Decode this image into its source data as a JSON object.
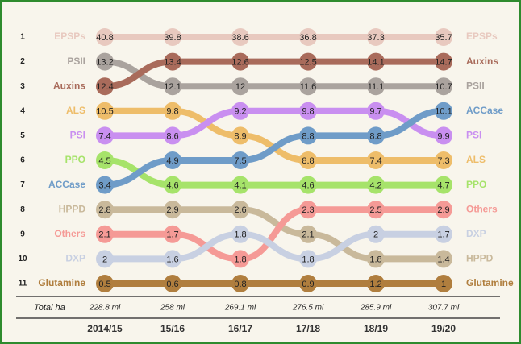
{
  "chart_data": {
    "type": "bump",
    "categories": [
      "2014/15",
      "15/16",
      "16/17",
      "17/18",
      "18/19",
      "19/20"
    ],
    "yticks": [
      1,
      2,
      3,
      4,
      5,
      6,
      7,
      8,
      9,
      10,
      11
    ],
    "total_label": "Total ha",
    "totals": [
      "228.8 mi",
      "258 mi",
      "269.1 mi",
      "276.5 mi",
      "285.9 mi",
      "307.7 mi"
    ],
    "series": [
      {
        "name": "EPSPs",
        "color": "#e8c9bf",
        "values": [
          40.8,
          39.8,
          38.6,
          36.8,
          37.3,
          35.7
        ],
        "ranks": [
          1,
          1,
          1,
          1,
          1,
          1
        ]
      },
      {
        "name": "PSII",
        "color": "#aaa39e",
        "values": [
          13.2,
          12.1,
          12,
          11.6,
          11.1,
          10.7
        ],
        "ranks": [
          2,
          3,
          3,
          3,
          3,
          3
        ]
      },
      {
        "name": "Auxins",
        "color": "#a96b5b",
        "values": [
          12.4,
          13.4,
          12.6,
          12.5,
          14.1,
          14.7
        ],
        "ranks": [
          3,
          2,
          2,
          2,
          2,
          2
        ]
      },
      {
        "name": "ALS",
        "color": "#eebd6a",
        "values": [
          10.5,
          9.8,
          8.9,
          8.8,
          7.4,
          7.3
        ],
        "ranks": [
          4,
          4,
          5,
          6,
          6,
          6
        ]
      },
      {
        "name": "PSI",
        "color": "#c98ff0",
        "values": [
          7.4,
          8.6,
          9.2,
          9.8,
          9.7,
          9.9
        ],
        "ranks": [
          5,
          5,
          4,
          4,
          4,
          5
        ]
      },
      {
        "name": "PPO",
        "color": "#a6e36a",
        "values": [
          4.5,
          4.6,
          4.1,
          4.6,
          4.2,
          4.7
        ],
        "ranks": [
          6,
          7,
          7,
          7,
          7,
          7
        ]
      },
      {
        "name": "ACCase",
        "color": "#6f9cc8",
        "values": [
          3.4,
          4.9,
          7.5,
          8.8,
          8.8,
          10.1
        ],
        "ranks": [
          7,
          6,
          6,
          5,
          5,
          4
        ]
      },
      {
        "name": "HPPD",
        "color": "#c9b99b",
        "values": [
          2.8,
          2.9,
          2.6,
          2.1,
          1.8,
          1.4
        ],
        "ranks": [
          8,
          8,
          8,
          9,
          10,
          10
        ]
      },
      {
        "name": "Others",
        "color": "#f59a96",
        "values": [
          2.1,
          1.7,
          1.8,
          2.3,
          2.5,
          2.9
        ],
        "ranks": [
          9,
          9,
          10,
          8,
          8,
          8
        ]
      },
      {
        "name": "DXP",
        "color": "#c8d0e2",
        "values": [
          2,
          1.6,
          1.8,
          1.8,
          2,
          1.7
        ],
        "ranks": [
          10,
          10,
          9,
          10,
          9,
          9
        ]
      },
      {
        "name": "Glutamine",
        "color": "#b07e3e",
        "values": [
          0.5,
          0.6,
          0.8,
          0.9,
          1.2,
          1
        ],
        "ranks": [
          11,
          11,
          11,
          11,
          11,
          11
        ]
      }
    ]
  }
}
